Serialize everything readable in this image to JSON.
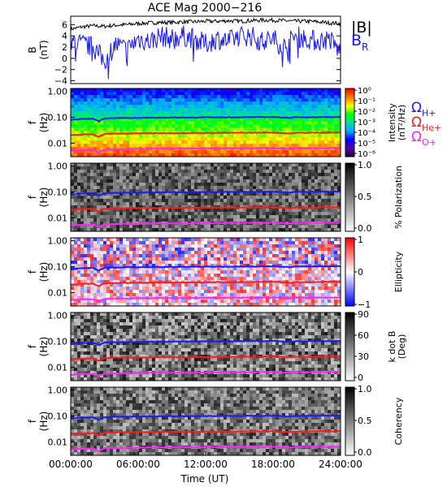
{
  "title": "ACE Mag 2000−216",
  "x_axis": {
    "label": "Time (UT)",
    "ticks": [
      "00:00:00",
      "06:00:00",
      "12:00:00",
      "18:00:00",
      "24:00:00"
    ],
    "range_hours": [
      0,
      24
    ]
  },
  "legend": {
    "b_total": "|B|",
    "b_radial_main": "B",
    "b_radial_sub": "R",
    "omega_symbol": "Ω",
    "h_plus": "H+",
    "he_plus": "He+",
    "o_plus": "O+"
  },
  "colors": {
    "b_total": "#000000",
    "b_radial": "#1515ff",
    "omega_h": "#1a1aff",
    "omega_he": "#ff1a1a",
    "omega_o": "#ff22ff"
  },
  "chart_data": [
    {
      "type": "line",
      "panel": "magnetic-field",
      "ylabel": "B",
      "yunit": "(nT)",
      "ylim": [
        -4.5,
        7.5
      ],
      "yticks": [
        "−4",
        "−2",
        "0",
        "2",
        "4",
        "6"
      ],
      "series": [
        {
          "name": "|B|",
          "x": [
            0,
            1,
            2,
            3,
            4,
            5,
            6,
            7,
            8,
            9,
            10,
            11,
            12,
            13,
            14,
            15,
            16,
            17,
            18,
            19,
            20,
            21,
            22,
            23,
            24
          ],
          "values": [
            5.2,
            5.6,
            5.8,
            5.7,
            5.9,
            6.0,
            6.2,
            6.3,
            6.4,
            6.4,
            6.5,
            6.5,
            6.6,
            6.6,
            6.7,
            6.6,
            6.7,
            6.8,
            6.8,
            6.7,
            6.6,
            6.6,
            6.5,
            6.3,
            6.2
          ]
        },
        {
          "name": "B_R",
          "x": [
            0,
            1,
            2,
            3,
            4,
            5,
            6,
            7,
            8,
            9,
            10,
            11,
            12,
            13,
            14,
            15,
            16,
            17,
            18,
            19,
            20,
            21,
            22,
            23,
            24
          ],
          "values": [
            3.0,
            2.5,
            2.0,
            -0.5,
            2.5,
            1.5,
            3.5,
            3.0,
            4.0,
            3.5,
            4.0,
            3.5,
            2.5,
            3.5,
            3.0,
            4.0,
            4.0,
            3.0,
            3.5,
            2.0,
            4.0,
            3.5,
            3.0,
            3.5,
            1.0
          ]
        }
      ]
    },
    {
      "type": "heatmap",
      "panel": "intensity",
      "ylabel": "f",
      "yunit": "(Hz)",
      "yscale": "log",
      "ylim": [
        0.003,
        1.3
      ],
      "yticks": [
        "1.00",
        "0.10",
        "0.01"
      ],
      "colorbar": {
        "label": "Intensity",
        "unit": "(nT²/Hz)",
        "scale": "log",
        "ticks": [
          "10⁰",
          "10⁻¹",
          "10⁻²",
          "10⁻³",
          "10⁻⁴",
          "10⁻⁵",
          "10⁻⁶"
        ],
        "colormap": "rainbow"
      }
    },
    {
      "type": "heatmap",
      "panel": "polarization",
      "ylabel": "f",
      "yunit": "(Hz)",
      "yscale": "log",
      "ylim": [
        0.003,
        1.3
      ],
      "yticks": [
        "1.00",
        "0.10",
        "0.01"
      ],
      "colorbar": {
        "label": "% Polarization",
        "ticks": [
          "1.0",
          "0.5",
          "0.0"
        ],
        "colormap": "gray"
      }
    },
    {
      "type": "heatmap",
      "panel": "ellipticity",
      "ylabel": "f",
      "yunit": "(Hz)",
      "yscale": "log",
      "ylim": [
        0.003,
        1.3
      ],
      "yticks": [
        "1.00",
        "0.10",
        "0.01"
      ],
      "colorbar": {
        "label": "Ellipticity",
        "ticks": [
          "1",
          "0",
          "−1"
        ],
        "colormap": "blue-white-red"
      }
    },
    {
      "type": "heatmap",
      "panel": "kdotb",
      "ylabel": "f",
      "yunit": "(Hz)",
      "yscale": "log",
      "ylim": [
        0.003,
        1.3
      ],
      "yticks": [
        "1.00",
        "0.10",
        "0.01"
      ],
      "colorbar": {
        "label": "k dot B",
        "unit": "(Deg)",
        "ticks": [
          "90",
          "60",
          "30",
          "0"
        ],
        "colormap": "gray"
      }
    },
    {
      "type": "heatmap",
      "panel": "coherency",
      "ylabel": "f",
      "yunit": "(Hz)",
      "yscale": "log",
      "ylim": [
        0.003,
        1.3
      ],
      "yticks": [
        "1.00",
        "0.10",
        "0.01"
      ],
      "colorbar": {
        "label": "Coherency",
        "ticks": [
          "1.0",
          "0.5",
          "0.0"
        ],
        "colormap": "gray"
      }
    },
    {
      "type": "line",
      "panel": "gyrofrequency-overlays",
      "yscale": "log",
      "series": [
        {
          "name": "ΩH+",
          "x": [
            0,
            1,
            2,
            2.5,
            3,
            4,
            6,
            8,
            10,
            12,
            14,
            16,
            18,
            19.5,
            20,
            22,
            24
          ],
          "values": [
            0.08,
            0.086,
            0.088,
            0.07,
            0.09,
            0.093,
            0.095,
            0.097,
            0.098,
            0.099,
            0.1,
            0.101,
            0.103,
            0.095,
            0.1,
            0.102,
            0.103
          ]
        },
        {
          "name": "ΩHe+",
          "x": [
            0,
            1,
            2,
            2.5,
            3,
            4,
            6,
            8,
            10,
            12,
            14,
            16,
            18,
            19.5,
            20,
            22,
            24
          ],
          "values": [
            0.02,
            0.0215,
            0.022,
            0.0175,
            0.0225,
            0.0232,
            0.0238,
            0.0243,
            0.0245,
            0.0248,
            0.025,
            0.0253,
            0.0258,
            0.0238,
            0.025,
            0.0255,
            0.0258
          ]
        },
        {
          "name": "ΩO+",
          "x": [
            0,
            1,
            2,
            2.5,
            3,
            4,
            6,
            8,
            10,
            12,
            14,
            16,
            18,
            19.5,
            20,
            22,
            24
          ],
          "values": [
            0.005,
            0.0054,
            0.0055,
            0.0044,
            0.0056,
            0.0058,
            0.006,
            0.0061,
            0.0061,
            0.0062,
            0.0063,
            0.0063,
            0.0064,
            0.006,
            0.0063,
            0.0064,
            0.0064
          ]
        }
      ]
    }
  ]
}
